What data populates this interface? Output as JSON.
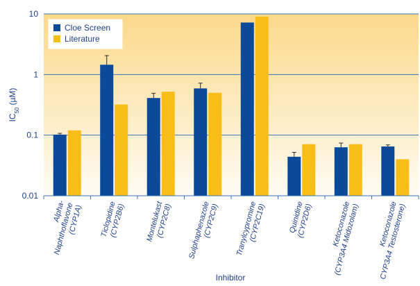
{
  "chart_data": {
    "type": "bar",
    "title": "",
    "xlabel": "Inhibitor",
    "ylabel": "IC50 (µM)",
    "ylabel_main": "IC",
    "ylabel_sub": "50",
    "ylabel_unit": "(µM)",
    "yscale": "log",
    "ylim": [
      0.01,
      10
    ],
    "yticks": [
      {
        "value": 0.01,
        "label": "0.01"
      },
      {
        "value": 0.1,
        "label": "0.1"
      },
      {
        "value": 1,
        "label": "1"
      },
      {
        "value": 10,
        "label": "10"
      }
    ],
    "grid": true,
    "legend_position": "top-left",
    "categories": [
      [
        "Alpha-",
        "Naphthoflavone",
        "(CYP1A)"
      ],
      [
        "Ticlopidine",
        "(CYP2B6)"
      ],
      [
        "Montelukast",
        "(CYP2C8)"
      ],
      [
        "Sulphaphenazole",
        "(CYP2C9)"
      ],
      [
        "Tranylcypromine",
        "(CYP2C19)"
      ],
      [
        "Quinidine",
        "(CYP2D6)"
      ],
      [
        "Ketoconazole",
        "(CYP3A4 Midozolam)"
      ],
      [
        "Ketoconazole",
        "CYP3A4 Testosterone)"
      ]
    ],
    "series": [
      {
        "name": "Cloe Screen",
        "color": "#0b4a9a",
        "values": [
          0.102,
          1.45,
          0.41,
          0.59,
          7.2,
          0.044,
          0.063,
          0.065
        ],
        "error_upper": [
          0.107,
          2.05,
          0.49,
          0.72,
          null,
          0.052,
          0.074,
          0.069
        ]
      },
      {
        "name": "Literature",
        "color": "#f9bd1a",
        "values": [
          0.12,
          0.32,
          0.52,
          0.5,
          9.0,
          0.071,
          0.071,
          0.04
        ],
        "error_upper": [
          null,
          null,
          null,
          null,
          null,
          null,
          null,
          null
        ]
      }
    ]
  },
  "colors": {
    "plot_top": "#fbd98a",
    "plot_bottom": "#fffcf3",
    "gridline": "#3a74b8",
    "axis_text": "#1f3f8a"
  }
}
